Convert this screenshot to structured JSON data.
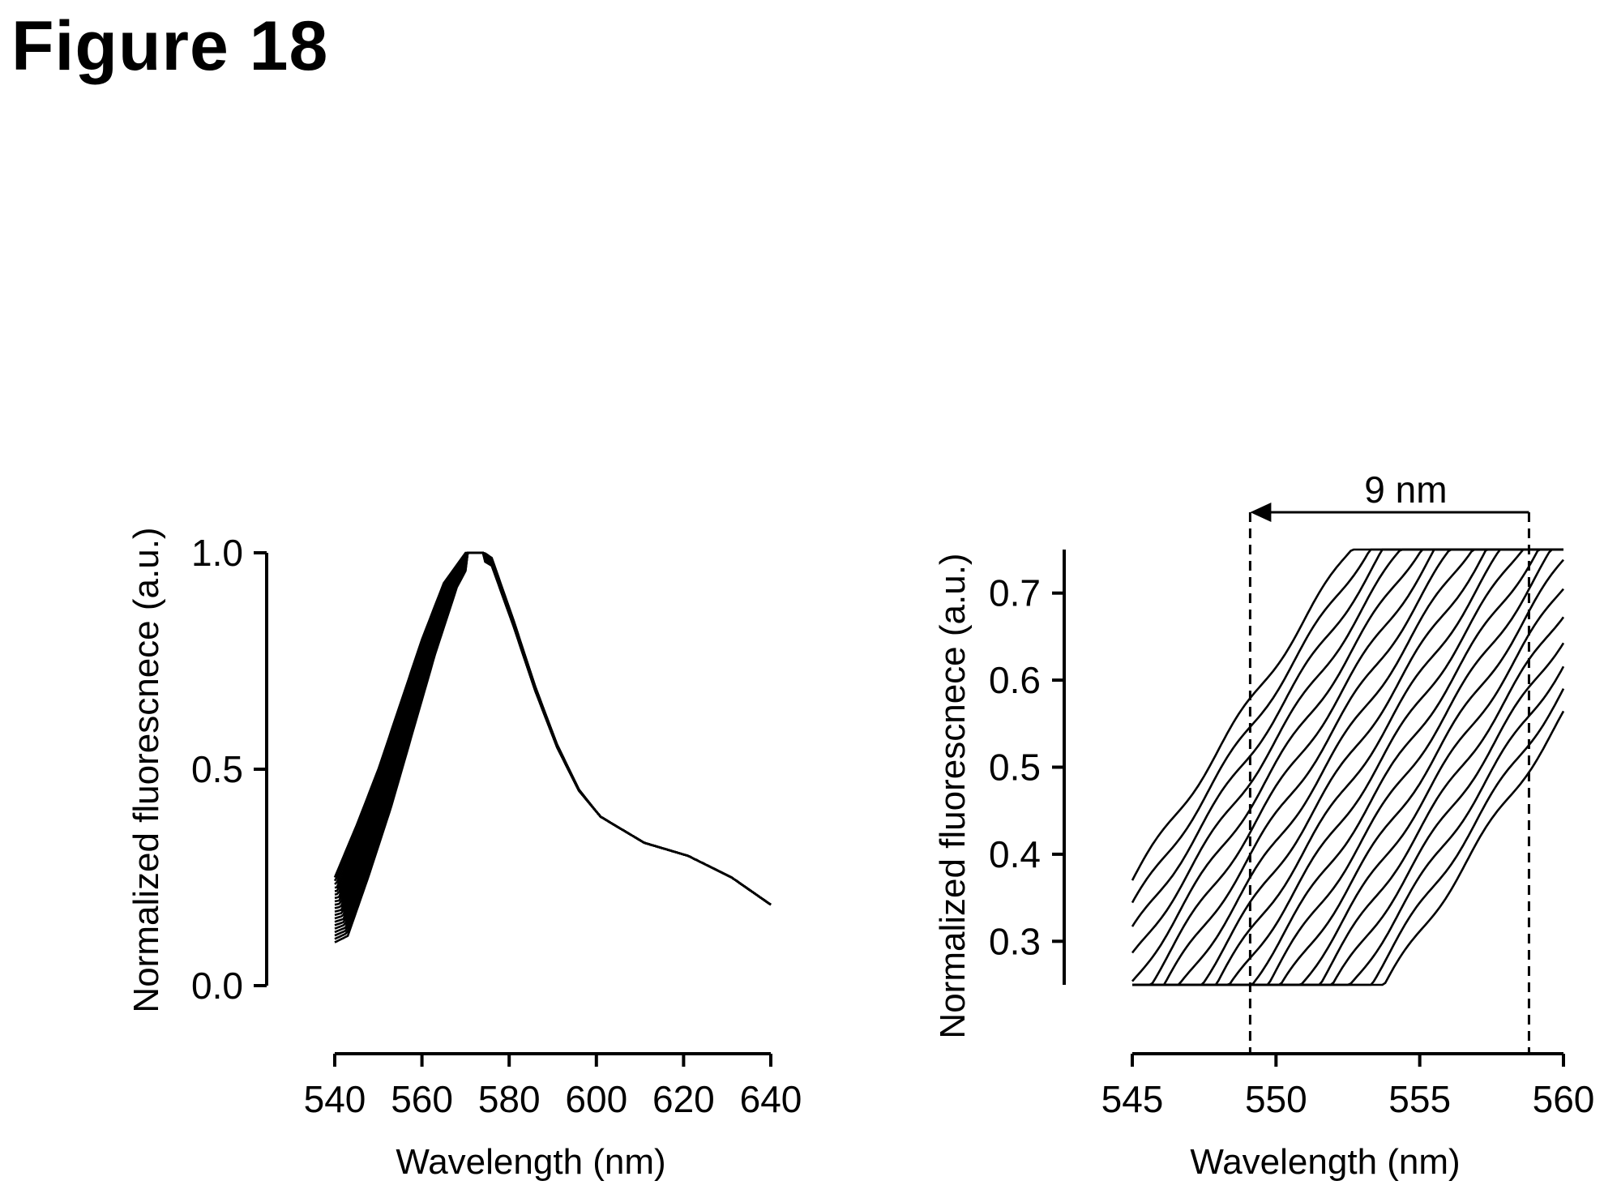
{
  "figure": {
    "title": "Figure 18"
  },
  "chart_data": [
    {
      "type": "line",
      "title": "",
      "xlabel": "Wavelength (nm)",
      "ylabel": "Normalized fluorescnece (a.u.)",
      "xlim": [
        540,
        640
      ],
      "ylim": [
        0.0,
        1.0
      ],
      "xticks": [
        "540",
        "560",
        "580",
        "600",
        "620",
        "640"
      ],
      "yticks": [
        "0.0",
        "0.5",
        "1.0"
      ],
      "grid": false,
      "legend": "none",
      "series_count": 20,
      "peak_shift_nm": 9,
      "series_example": {
        "x": [
          540,
          545,
          550,
          555,
          560,
          565,
          570,
          575,
          580,
          585,
          590,
          595,
          600,
          605,
          610,
          620,
          630,
          640
        ],
        "y": [
          0.25,
          0.37,
          0.5,
          0.65,
          0.8,
          0.93,
          1.0,
          0.97,
          0.83,
          0.68,
          0.55,
          0.45,
          0.39,
          0.36,
          0.33,
          0.3,
          0.25,
          0.18
        ]
      }
    },
    {
      "type": "line",
      "title": "",
      "xlabel": "Wavelength (nm)",
      "ylabel": "Normalized fluorescnece (a.u.)",
      "xlim": [
        545,
        560
      ],
      "ylim": [
        0.25,
        0.75
      ],
      "xticks": [
        "545",
        "550",
        "555",
        "560"
      ],
      "yticks": [
        "0.3",
        "0.4",
        "0.5",
        "0.6",
        "0.7"
      ],
      "grid": false,
      "legend": "none",
      "series_count": 20,
      "slope_per_nm": 0.05,
      "first_series_y_at_545": 0.37,
      "last_series_y_at_560": 0.56,
      "annotation": {
        "text": "9 nm",
        "x_from": 558.8,
        "x_to": 549.1,
        "arrow": "left"
      }
    }
  ]
}
